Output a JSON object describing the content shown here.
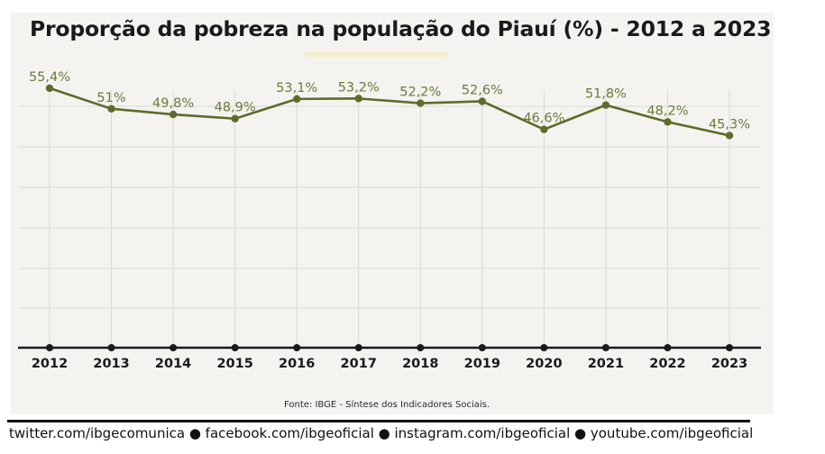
{
  "title": "Proporção da pobreza na população do Piauí (%) - 2012 a 2023",
  "source": "Fonte: IBGE - Síntese dos Indicadores Sociais.",
  "footer": "twitter.com/ibgecomunica ● facebook.com/ibgeoficial ● instagram.com/ibgeoficial ● youtube.com/ibgeoficial",
  "colors": {
    "line": "#5e6b2c",
    "label": "#6a7a3c",
    "axis": "#1a1a1a",
    "grid": "#d9d9d6",
    "background": "#f4f3ef"
  },
  "chart_data": {
    "type": "line",
    "title": "Proporção da pobreza na população do Piauí (%) - 2012 a 2023",
    "x": [
      "2012",
      "2013",
      "2014",
      "2015",
      "2016",
      "2017",
      "2018",
      "2019",
      "2020",
      "2021",
      "2022",
      "2023"
    ],
    "values": [
      55.4,
      51.0,
      49.8,
      48.9,
      53.1,
      53.2,
      52.2,
      52.6,
      46.6,
      51.8,
      48.2,
      45.3
    ],
    "data_labels": [
      "55,4%",
      "51%",
      "49,8%",
      "48,9%",
      "53,1%",
      "53,2%",
      "52,2%",
      "52,6%",
      "46,6%",
      "51,8%",
      "48,2%",
      "45,3%"
    ],
    "ylim": [
      0,
      60
    ],
    "grid": true,
    "legend": "none"
  }
}
